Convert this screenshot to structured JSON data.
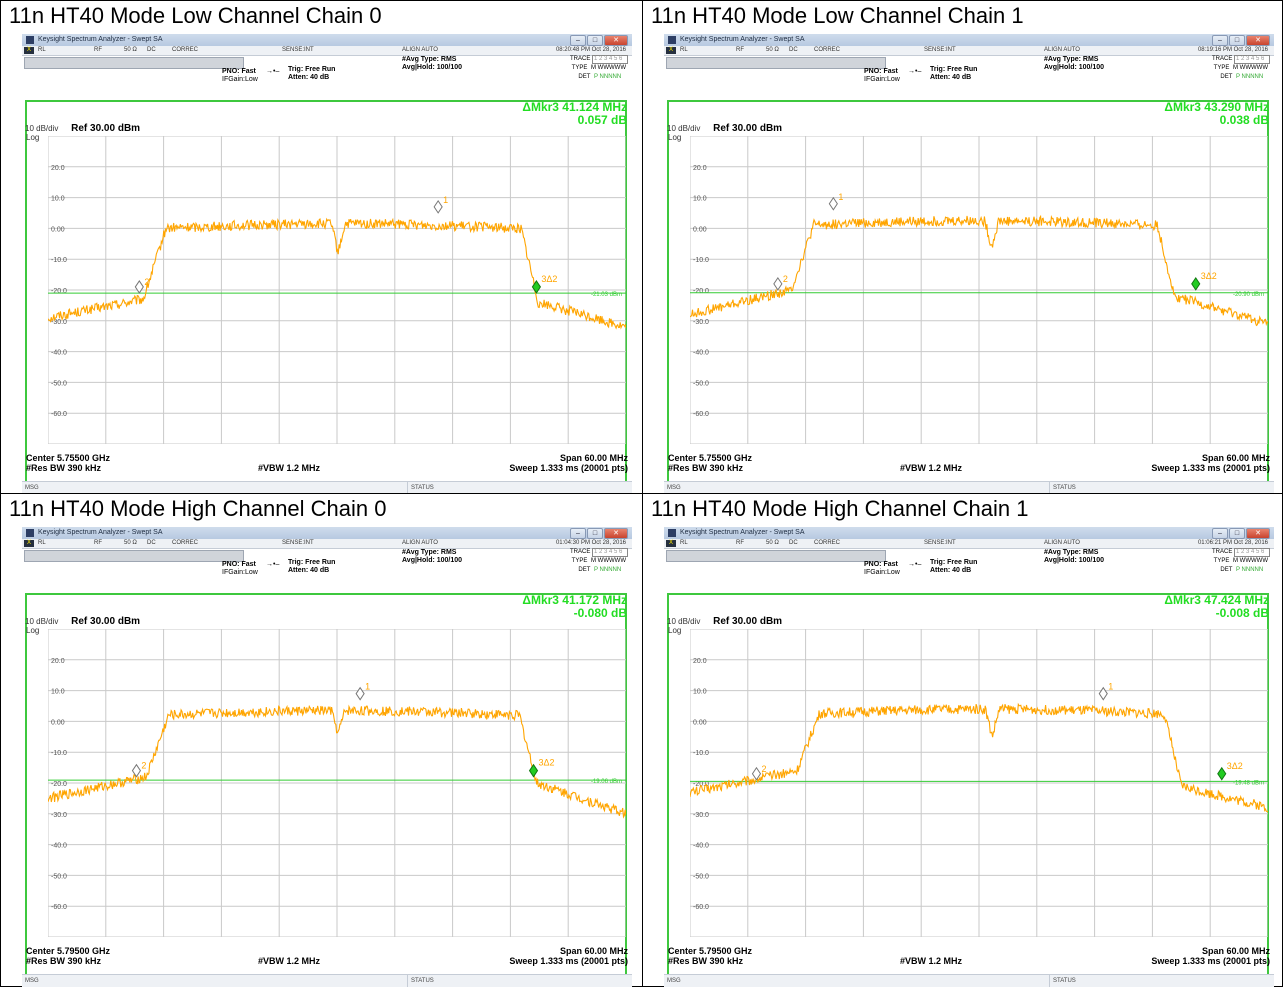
{
  "panels": [
    {
      "title": "11n HT40 Mode Low Channel Chain 0",
      "window_title": "Keysight Spectrum Analyzer - Swept SA",
      "timestamp": "08:20:48 PM Oct 28, 2016",
      "marker_delta_freq": "ΔMkr3 41.124 MHz",
      "marker_delta_level": "0.057 dB",
      "center": "Center 5.75500 GHz",
      "threshold_label": "-21.03 dBm",
      "threshold_db": -21.03,
      "trace": {
        "lo_edge": 0.195,
        "hi_edge": 0.818,
        "top": 1.5,
        "lo_start": -29,
        "lo_end": -23,
        "hi_after": -24,
        "hi_end": -32,
        "dip_pos": 0.502,
        "dip": -8
      },
      "markers": {
        "m1": {
          "x": 0.675,
          "y": 7
        },
        "m2": {
          "x": 0.158,
          "y": -19
        },
        "m3": {
          "x": 0.845,
          "y": -19
        }
      }
    },
    {
      "title": "11n HT40 Mode Low Channel Chain 1",
      "window_title": "Keysight Spectrum Analyzer - Swept SA",
      "timestamp": "08:19:16 PM Oct 28, 2016",
      "marker_delta_freq": "ΔMkr3 43.290 MHz",
      "marker_delta_level": "0.038 dB",
      "center": "Center 5.75500 GHz",
      "threshold_label": "-20.90 dBm",
      "threshold_db": -20.9,
      "trace": {
        "lo_edge": 0.205,
        "hi_edge": 0.808,
        "top": 2.5,
        "lo_start": -28,
        "lo_end": -20,
        "hi_after": -22,
        "hi_end": -31,
        "dip_pos": 0.522,
        "dip": -6
      },
      "markers": {
        "m1": {
          "x": 0.248,
          "y": 8
        },
        "m2": {
          "x": 0.152,
          "y": -18
        },
        "m3": {
          "x": 0.875,
          "y": -18
        }
      }
    },
    {
      "title": "11n HT40 Mode High Channel Chain 0",
      "window_title": "Keysight Spectrum Analyzer - Swept SA",
      "timestamp": "01:04:30 PM Oct 28, 2016",
      "marker_delta_freq": "ΔMkr3 41.172 MHz",
      "marker_delta_level": "-0.080 dB",
      "center": "Center 5.79500 GHz",
      "threshold_label": "-19.06 dBm",
      "threshold_db": -19.06,
      "trace": {
        "lo_edge": 0.2,
        "hi_edge": 0.815,
        "top": 3.5,
        "lo_start": -25,
        "lo_end": -18,
        "hi_after": -20,
        "hi_end": -30,
        "dip_pos": 0.502,
        "dip": -4
      },
      "markers": {
        "m1": {
          "x": 0.54,
          "y": 9
        },
        "m2": {
          "x": 0.153,
          "y": -16
        },
        "m3": {
          "x": 0.84,
          "y": -16
        }
      }
    },
    {
      "title": "11n HT40 Mode High Channel Chain 1",
      "window_title": "Keysight Spectrum Analyzer - Swept SA",
      "timestamp": "01:06:21 PM Oct 28, 2016",
      "marker_delta_freq": "ΔMkr3 47.424 MHz",
      "marker_delta_level": "-0.008 dB",
      "center": "Center 5.79500 GHz",
      "threshold_label": "-19.48 dBm",
      "threshold_db": -19.48,
      "trace": {
        "lo_edge": 0.215,
        "hi_edge": 0.82,
        "top": 4.0,
        "lo_start": -23,
        "lo_end": -16,
        "hi_after": -21,
        "hi_end": -28,
        "dip_pos": 0.523,
        "dip": -5
      },
      "markers": {
        "m1": {
          "x": 0.715,
          "y": 9
        },
        "m2": {
          "x": 0.115,
          "y": -17
        },
        "m3": {
          "x": 0.92,
          "y": -17
        }
      }
    }
  ],
  "common": {
    "rl": "RL",
    "rf": "RF",
    "impedance": "50 Ω",
    "dc": "DC",
    "correc": "CORREC",
    "sense": "SENSE:INT",
    "align": "ALIGN AUTO",
    "avg_type": "#Avg Type: RMS",
    "avg_hold": "Avg|Hold: 100/100",
    "pno": "PNO: Fast",
    "ifgain": "IFGain:Low",
    "trig": "Trig: Free Run",
    "atten": "Atten: 40 dB",
    "trace_label": "TRACE",
    "trace_value": "1 2 3 4 5 6",
    "type_label": "TYPE",
    "type_value": "M WWWWW",
    "det_label": "DET",
    "det_value": "P NNNNN",
    "db_div": "10 dB/div",
    "ref": "Ref 30.00 dBm",
    "log": "Log",
    "y_ticks": [
      "20.0",
      "10.0",
      "0.00",
      "-10.0",
      "-20.0",
      "-30.0",
      "-40.0",
      "-50.0",
      "-60.0"
    ],
    "res_bw": "#Res BW 390 kHz",
    "vbw": "#VBW 1.2 MHz",
    "span": "Span 60.00 MHz",
    "sweep": "Sweep  1.333 ms (20001 pts)",
    "msg": "MSG",
    "status": "STATUS",
    "mkr1_label": "1",
    "mkr2_label": "2",
    "mkr3_label": "3Δ2",
    "trace_color": "#ffa500",
    "marker_text_color": "#ffa500",
    "threshold_color": "#33cc33",
    "delta_marker_color": "#22cc22",
    "grid_color": "#c9c9c9",
    "accent_green": "#22dd22"
  },
  "chart_data": [
    {
      "type": "line",
      "title": "11n HT40 Mode Low Channel Chain 0",
      "xlabel": "Center 5.75500 GHz",
      "ylabel": "dBm",
      "ylim": [
        -70,
        30
      ],
      "x_span_mhz": 60,
      "markers": [
        {
          "name": "1",
          "value_db": 7
        },
        {
          "name": "2",
          "value_db": -19
        },
        {
          "name": "3Δ2",
          "delta_freq_mhz": 41.124,
          "delta_db": 0.057
        }
      ],
      "threshold_dbm": -21.03
    },
    {
      "type": "line",
      "title": "11n HT40 Mode Low Channel Chain 1",
      "xlabel": "Center 5.75500 GHz",
      "ylabel": "dBm",
      "ylim": [
        -70,
        30
      ],
      "x_span_mhz": 60,
      "markers": [
        {
          "name": "1",
          "value_db": 8
        },
        {
          "name": "2",
          "value_db": -18
        },
        {
          "name": "3Δ2",
          "delta_freq_mhz": 43.29,
          "delta_db": 0.038
        }
      ],
      "threshold_dbm": -20.9
    },
    {
      "type": "line",
      "title": "11n HT40 Mode High Channel Chain 0",
      "xlabel": "Center 5.79500 GHz",
      "ylabel": "dBm",
      "ylim": [
        -70,
        30
      ],
      "x_span_mhz": 60,
      "markers": [
        {
          "name": "1",
          "value_db": 9
        },
        {
          "name": "2",
          "value_db": -16
        },
        {
          "name": "3Δ2",
          "delta_freq_mhz": 41.172,
          "delta_db": -0.08
        }
      ],
      "threshold_dbm": -19.06
    },
    {
      "type": "line",
      "title": "11n HT40 Mode High Channel Chain 1",
      "xlabel": "Center 5.79500 GHz",
      "ylabel": "dBm",
      "ylim": [
        -70,
        30
      ],
      "x_span_mhz": 60,
      "markers": [
        {
          "name": "1",
          "value_db": 9
        },
        {
          "name": "2",
          "value_db": -17
        },
        {
          "name": "3Δ2",
          "delta_freq_mhz": 47.424,
          "delta_db": -0.008
        }
      ],
      "threshold_dbm": -19.48
    }
  ]
}
